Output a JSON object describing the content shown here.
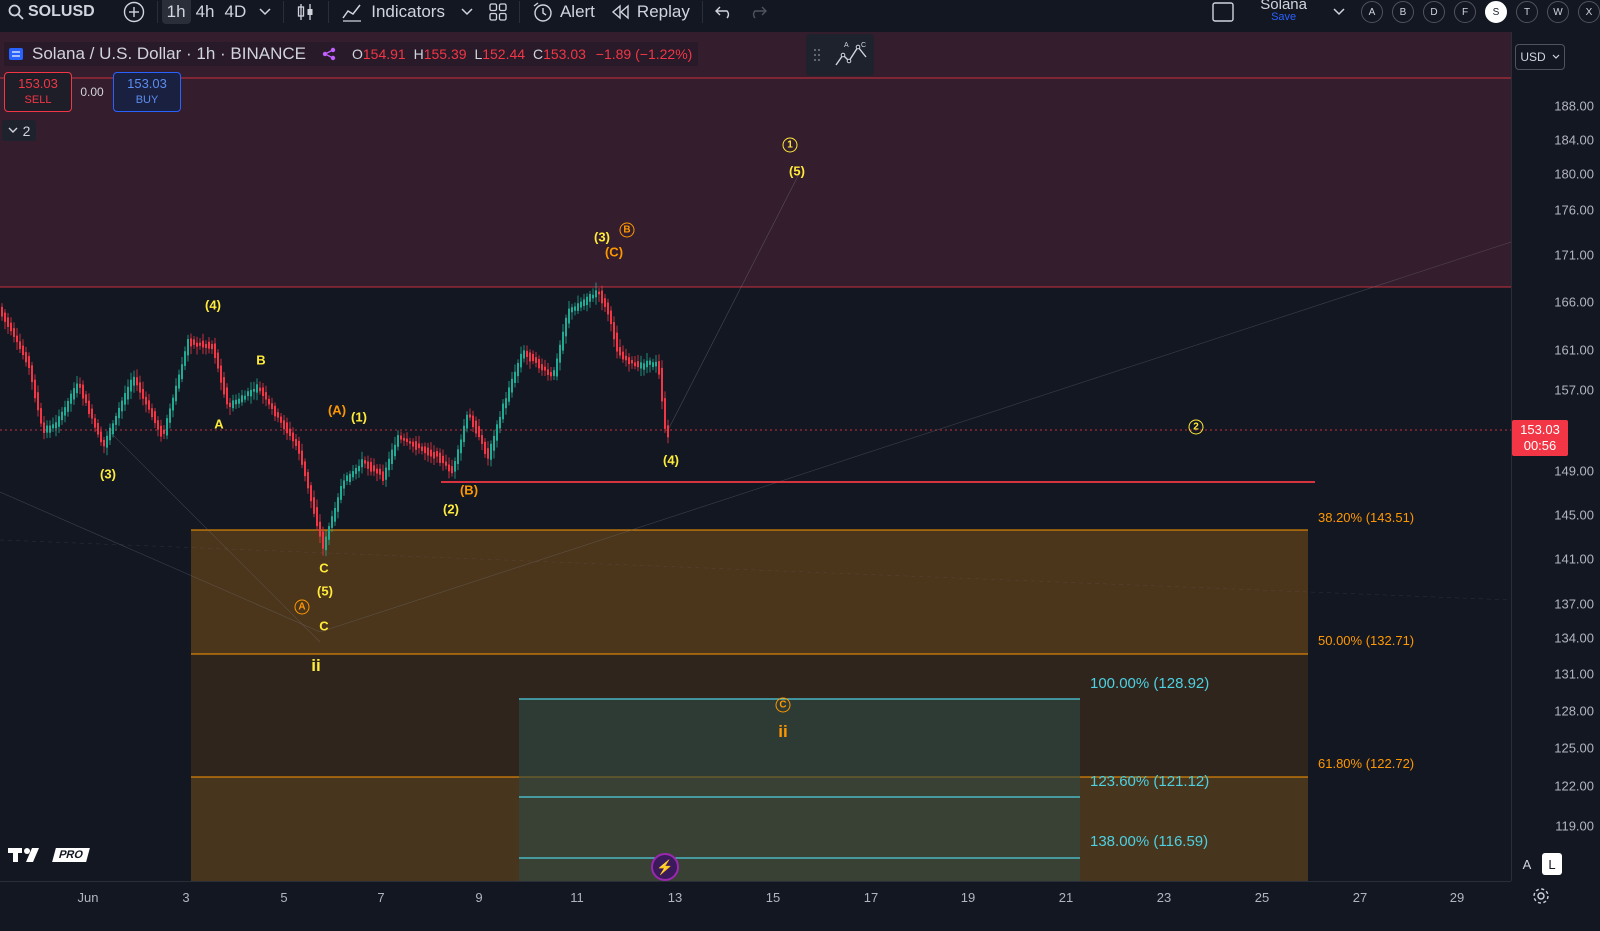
{
  "toolbar": {
    "symbol": "SOLUSD",
    "intervals": [
      "1h",
      "4h",
      "4D"
    ],
    "active_interval": "1h",
    "indicators_label": "Indicators",
    "alert_label": "Alert",
    "replay_label": "Replay",
    "layout_name": "Solana",
    "save_label": "Save",
    "watch_letters": [
      "A",
      "B",
      "D",
      "F",
      "S",
      "T",
      "W",
      "X"
    ],
    "active_letter": "S"
  },
  "legend": {
    "title": "Solana / U.S. Dollar · 1h · BINANCE",
    "open_label": "O",
    "open": "154.91",
    "high_label": "H",
    "high": "155.39",
    "low_label": "L",
    "low": "152.44",
    "close_label": "C",
    "close": "153.03",
    "change": "−1.89 (−1.22%)"
  },
  "trade": {
    "sell_price": "153.03",
    "sell_label": "SELL",
    "buy_price": "153.03",
    "buy_label": "BUY",
    "spread": "0.00",
    "collapse_label": "2"
  },
  "price_scale": {
    "currency": "USD",
    "ticks": [
      "188.00",
      "184.00",
      "180.00",
      "176.00",
      "171.00",
      "166.00",
      "161.00",
      "157.00",
      "149.00",
      "145.00",
      "141.00",
      "137.00",
      "134.00",
      "131.00",
      "128.00",
      "125.00",
      "122.00",
      "119.00"
    ],
    "current_price": "153.03",
    "countdown": "00:56",
    "scale_btn_auto": "A",
    "scale_btn_log": "L"
  },
  "time_axis": {
    "ticks": [
      "Jun",
      "3",
      "5",
      "7",
      "9",
      "11",
      "13",
      "15",
      "17",
      "19",
      "21",
      "23",
      "25",
      "27",
      "29"
    ]
  },
  "waves": {
    "w4_top": "(4)",
    "b": "B",
    "a": "A",
    "w3_left": "(3)",
    "A_or": "(A)",
    "w1": "(1)",
    "c1": "C",
    "w5": "(5)",
    "c2": "C",
    "ii_main": "ii",
    "w2": "(2)",
    "B_or": "(B)",
    "w3_peak": "(3)",
    "C_or": "(C)",
    "w4_right": "(4)",
    "w5_top": "(5)",
    "circled_1": "1",
    "circled_2": "2",
    "circled_A": "A",
    "circled_B": "B",
    "circled_C": "C",
    "ii_target": "ii"
  },
  "fib_retracement": {
    "levels": [
      "38.20% (143.51)",
      "50.00% (132.71)",
      "61.80% (122.72)"
    ]
  },
  "fib_extension": {
    "levels": [
      "100.00% (128.92)",
      "123.60% (121.12)",
      "138.00% (116.59)"
    ]
  },
  "branding": {
    "pro_label": "PRO"
  },
  "colors": {
    "background": "#131722",
    "up_candle": "#22ab94",
    "down_candle": "#f23645",
    "wave_yellow": "#ffeb3b",
    "wave_orange": "#ff9800",
    "fib_cyan": "#4dd0e1",
    "resistance_zone": "#3b1f2f"
  }
}
